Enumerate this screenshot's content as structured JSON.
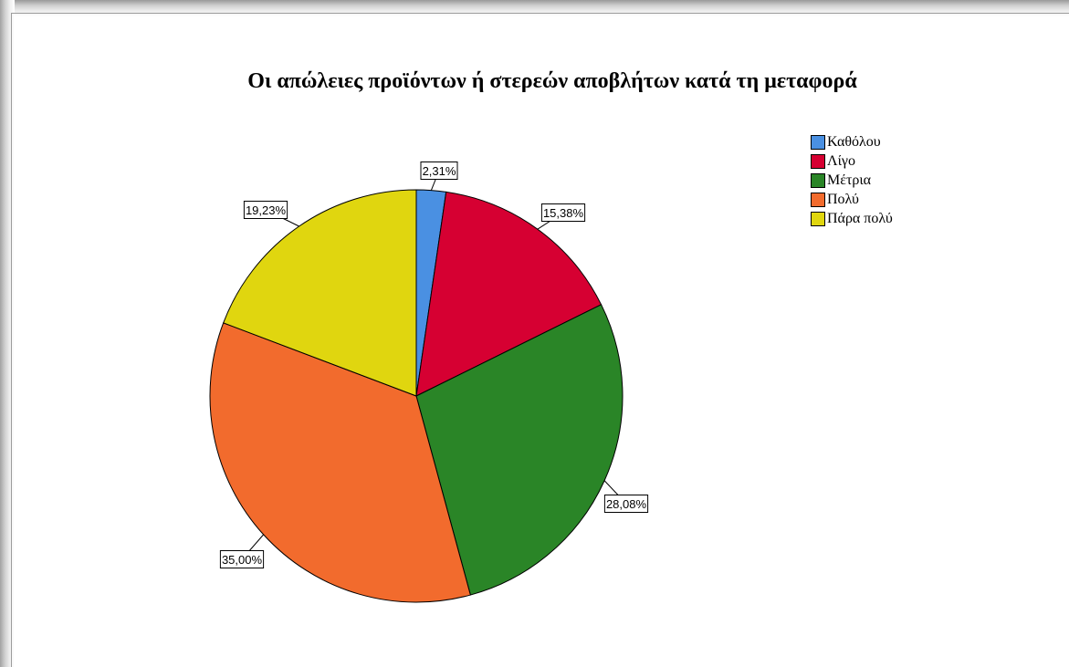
{
  "chart_data": {
    "type": "pie",
    "title": "Οι απώλειες προϊόντων ή στερεών αποβλήτων κατά τη μεταφορά",
    "legend_position": "top-right",
    "slices": [
      {
        "label": "Καθόλου",
        "value": 2.31,
        "value_label": "2,31%",
        "color": "#4a90e2"
      },
      {
        "label": "Λίγο",
        "value": 15.38,
        "value_label": "15,38%",
        "color": "#d60032"
      },
      {
        "label": "Μέτρια",
        "value": 28.08,
        "value_label": "28,08%",
        "color": "#2a8527"
      },
      {
        "label": "Πολύ",
        "value": 35.0,
        "value_label": "35,00%",
        "color": "#f26b2d"
      },
      {
        "label": "Πάρα πολύ",
        "value": 19.23,
        "value_label": "19,23%",
        "color": "#e0d60f"
      }
    ]
  }
}
